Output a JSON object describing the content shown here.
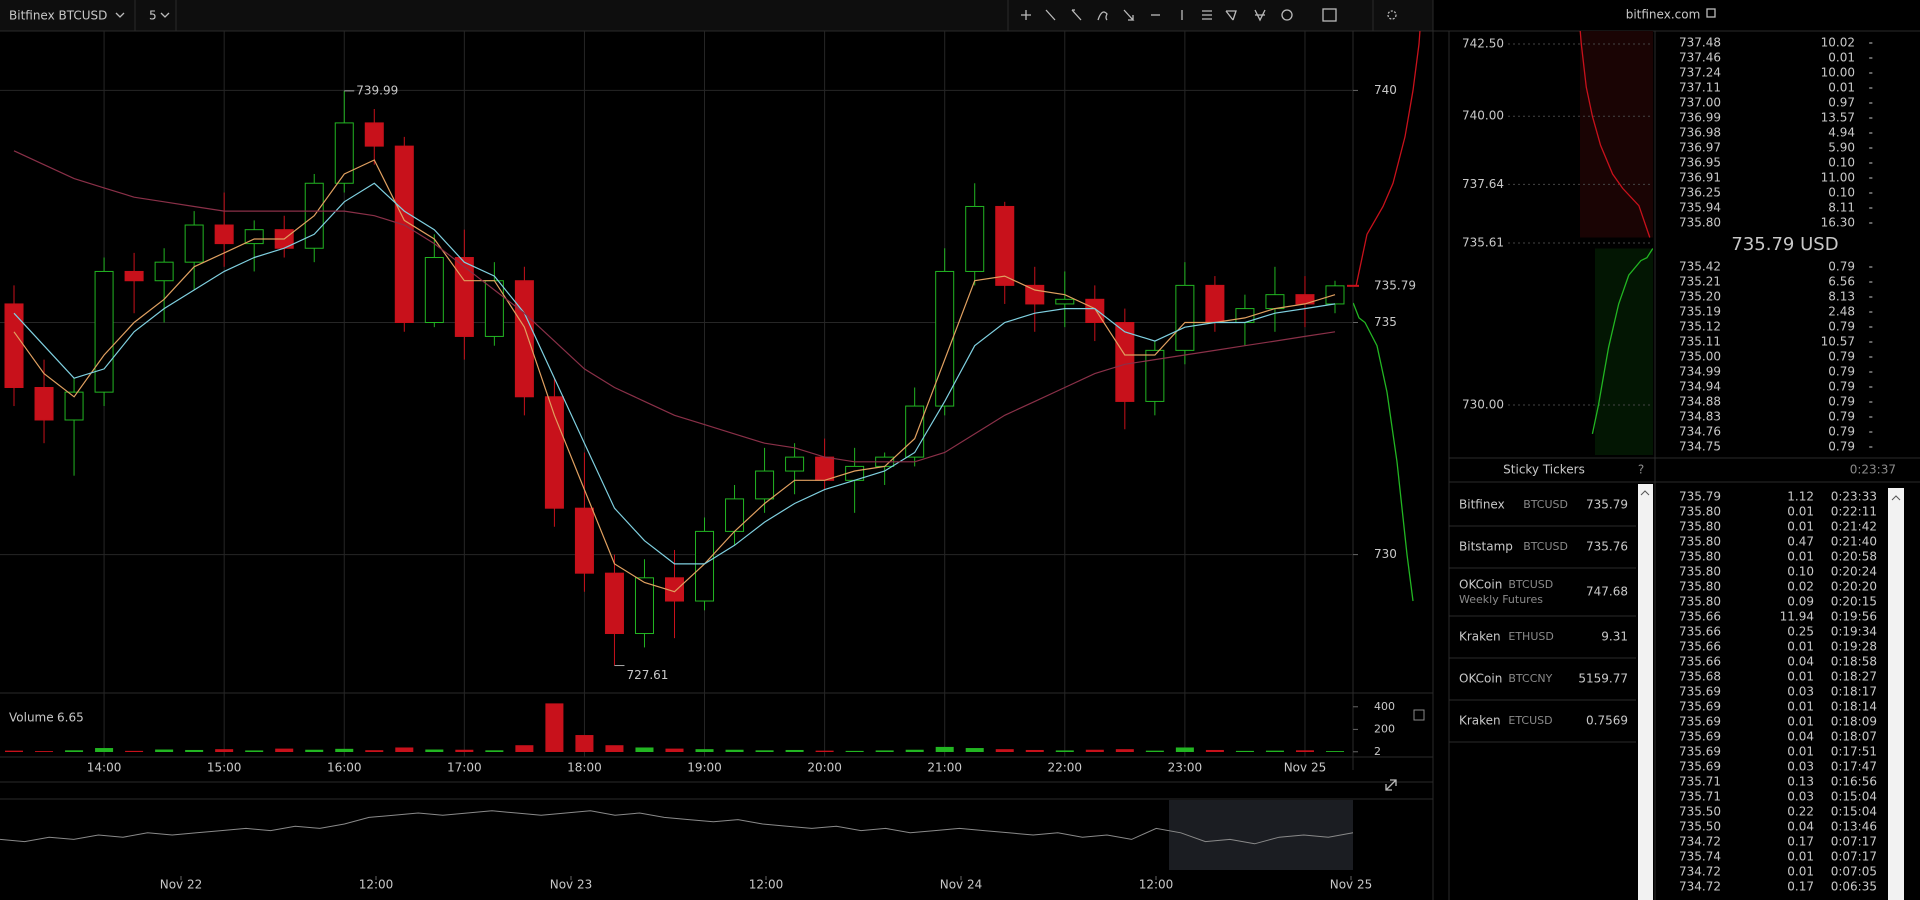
{
  "header": {
    "symbol": "Bitfinex BTCUSD",
    "interval": "5",
    "site": "bitfinex.com"
  },
  "price_chart": {
    "type": "candlestick",
    "up_color": "#22b522",
    "down_color": "#c8111b",
    "xlim": [
      "13:08",
      "00:24"
    ],
    "xticks": [
      "14:00",
      "15:00",
      "16:00",
      "17:00",
      "18:00",
      "19:00",
      "20:00",
      "21:00",
      "22:00",
      "23:00",
      {
        "value": "00:00",
        "label": "Nov 25"
      }
    ],
    "ylim": [
      727.04,
      741.28
    ],
    "yticks": [
      730,
      735,
      740
    ],
    "grid": true,
    "high": 739.99,
    "low": 727.61,
    "last_price": 735.79,
    "times": [
      "13:15",
      "13:30",
      "13:45",
      "14:00",
      "14:15",
      "14:30",
      "14:45",
      "15:00",
      "15:15",
      "15:30",
      "15:45",
      "16:00",
      "16:15",
      "16:30",
      "16:45",
      "17:00",
      "17:15",
      "17:30",
      "17:45",
      "18:00",
      "18:15",
      "18:30",
      "18:45",
      "19:00",
      "19:15",
      "19:30",
      "19:45",
      "20:00",
      "20:15",
      "20:30",
      "20:45",
      "21:00",
      "21:15",
      "21:30",
      "21:45",
      "22:00",
      "22:15",
      "22:30",
      "22:45",
      "23:00",
      "23:15",
      "23:30",
      "23:45",
      "00:00",
      "00:15"
    ],
    "ohlc": [
      [
        735.4,
        735.8,
        733.2,
        733.6
      ],
      [
        733.6,
        734.2,
        732.4,
        732.9
      ],
      [
        732.9,
        733.8,
        731.7,
        733.5
      ],
      [
        733.5,
        736.4,
        733.2,
        736.1
      ],
      [
        736.1,
        736.5,
        735.2,
        735.9
      ],
      [
        735.9,
        736.6,
        735.0,
        736.3
      ],
      [
        736.3,
        737.4,
        735.7,
        737.1
      ],
      [
        737.1,
        737.8,
        736.2,
        736.7
      ],
      [
        736.7,
        737.2,
        736.1,
        737.0
      ],
      [
        737.0,
        737.3,
        736.4,
        736.6
      ],
      [
        736.6,
        738.2,
        736.3,
        738.0
      ],
      [
        738.0,
        739.99,
        737.8,
        739.3
      ],
      [
        739.3,
        739.6,
        738.4,
        738.8
      ],
      [
        738.8,
        739.0,
        734.8,
        735.0
      ],
      [
        735.0,
        736.9,
        734.9,
        736.4
      ],
      [
        736.4,
        737.0,
        734.2,
        734.7
      ],
      [
        734.7,
        736.3,
        734.5,
        735.9
      ],
      [
        735.9,
        736.2,
        733.0,
        733.4
      ],
      [
        733.4,
        733.8,
        730.6,
        731.0
      ],
      [
        731.0,
        732.2,
        729.2,
        729.6
      ],
      [
        729.6,
        730.0,
        727.61,
        728.3
      ],
      [
        728.3,
        729.9,
        728.0,
        729.5
      ],
      [
        729.5,
        730.1,
        728.2,
        729.0
      ],
      [
        729.0,
        730.8,
        728.8,
        730.5
      ],
      [
        730.5,
        731.5,
        730.2,
        731.2
      ],
      [
        731.2,
        732.3,
        730.9,
        731.8
      ],
      [
        731.8,
        732.4,
        731.3,
        732.1
      ],
      [
        732.1,
        732.5,
        731.4,
        731.6
      ],
      [
        731.6,
        732.3,
        730.9,
        731.9
      ],
      [
        731.9,
        732.2,
        731.5,
        732.1
      ],
      [
        732.1,
        733.6,
        731.9,
        733.2
      ],
      [
        733.2,
        736.6,
        733.0,
        736.1
      ],
      [
        736.1,
        738.0,
        735.8,
        737.5
      ],
      [
        737.5,
        737.6,
        735.4,
        735.8
      ],
      [
        735.8,
        736.2,
        734.8,
        735.4
      ],
      [
        735.4,
        736.1,
        734.9,
        735.5
      ],
      [
        735.5,
        735.8,
        734.6,
        735.0
      ],
      [
        735.0,
        735.3,
        732.7,
        733.3
      ],
      [
        733.3,
        734.6,
        733.0,
        734.4
      ],
      [
        734.4,
        736.3,
        734.1,
        735.8
      ],
      [
        735.8,
        736.0,
        734.8,
        735.0
      ],
      [
        735.0,
        735.6,
        734.5,
        735.3
      ],
      [
        735.3,
        736.2,
        734.8,
        735.6
      ],
      [
        735.6,
        736.0,
        734.9,
        735.4
      ],
      [
        735.4,
        735.9,
        735.2,
        735.79
      ]
    ],
    "series": [
      {
        "color": "#e0a060",
        "values": [
          734.8,
          733.9,
          733.4,
          734.3,
          735.0,
          735.5,
          736.2,
          736.5,
          736.8,
          736.8,
          737.3,
          738.2,
          738.5,
          737.2,
          736.8,
          735.9,
          735.9,
          734.9,
          733.0,
          731.4,
          729.8,
          729.4,
          729.2,
          729.8,
          730.5,
          731.1,
          731.6,
          731.6,
          731.8,
          731.9,
          732.5,
          734.2,
          735.9,
          736.0,
          735.7,
          735.6,
          735.3,
          734.3,
          734.3,
          735.0,
          735.0,
          735.1,
          735.3,
          735.4,
          735.6
        ]
      },
      {
        "color": "#7fd0e0",
        "values": [
          735.2,
          734.5,
          733.8,
          734.0,
          734.8,
          735.3,
          735.7,
          736.1,
          736.4,
          736.6,
          736.9,
          737.6,
          738.0,
          737.4,
          737.0,
          736.3,
          736.0,
          735.2,
          733.8,
          732.4,
          731.0,
          730.3,
          729.8,
          729.8,
          730.2,
          730.7,
          731.1,
          731.4,
          731.6,
          731.8,
          732.2,
          733.3,
          734.5,
          735.0,
          735.2,
          735.3,
          735.3,
          734.8,
          734.6,
          734.9,
          735.0,
          735.0,
          735.2,
          735.3,
          735.4
        ]
      },
      {
        "color": "#8a3048",
        "values": [
          738.7,
          738.4,
          738.1,
          737.9,
          737.7,
          737.6,
          737.5,
          737.4,
          737.4,
          737.4,
          737.4,
          737.4,
          737.3,
          737.1,
          736.7,
          736.2,
          735.7,
          735.2,
          734.6,
          734.0,
          733.6,
          733.3,
          733.0,
          732.8,
          732.6,
          732.4,
          732.3,
          732.1,
          732.0,
          732.0,
          732.0,
          732.2,
          732.6,
          733.0,
          733.3,
          733.6,
          733.9,
          734.1,
          734.2,
          734.3,
          734.4,
          734.5,
          734.6,
          734.7,
          734.8
        ]
      }
    ]
  },
  "volume": {
    "type": "bar",
    "label": "Volume",
    "value": 6.65,
    "ylim": [
      0,
      460
    ],
    "yticks": [
      2,
      200,
      400
    ],
    "values": [
      12,
      8,
      15,
      35,
      10,
      22,
      18,
      25,
      14,
      30,
      20,
      28,
      16,
      40,
      22,
      20,
      15,
      60,
      430,
      150,
      60,
      40,
      30,
      25,
      20,
      15,
      18,
      12,
      10,
      14,
      20,
      45,
      35,
      25,
      18,
      14,
      20,
      25,
      12,
      40,
      18,
      10,
      12,
      15,
      8
    ]
  },
  "navigator": {
    "type": "line",
    "color": "#8a8a8a",
    "ylim": [
      715,
      745
    ],
    "xticks": [
      "Nov 22",
      "12:00",
      "Nov 23",
      "12:00",
      "Nov 24",
      "12:00",
      "Nov 25"
    ],
    "values": [
      728,
      727,
      729,
      728,
      730,
      729,
      731,
      730,
      731,
      732,
      733,
      732,
      734,
      733,
      735,
      738,
      739,
      740,
      739,
      740,
      741,
      740,
      739,
      740,
      741,
      739,
      740,
      738,
      737,
      736,
      737,
      735,
      734,
      733,
      734,
      732,
      733,
      731,
      732,
      733,
      732,
      731,
      730,
      731,
      729,
      730,
      728,
      733,
      731,
      727,
      728,
      726,
      729,
      730,
      729,
      731
    ]
  },
  "depth": {
    "type": "depth",
    "xlim": [
      0,
      1000
    ],
    "ylim": [
      728.27,
      742.95
    ],
    "yticks": [
      {
        "value": 742.5,
        "label": "742.50"
      },
      {
        "value": 740,
        "label": "740.00"
      },
      737.64,
      735.61,
      {
        "value": 730,
        "label": "730.00"
      }
    ],
    "asks": {
      "color": "#c8111b",
      "prices": [
        735.8,
        736.9,
        737.5,
        738.0,
        739.0,
        740.0,
        741.0,
        742.5,
        743.0
      ],
      "amounts": [
        16,
        70,
        150,
        200,
        260,
        300,
        330,
        355,
        361
      ]
    },
    "bids": {
      "color": "#22b522",
      "prices": [
        735.42,
        735.1,
        735.0,
        734.5,
        733.5,
        732.0,
        731.0,
        730.0,
        729.0
      ],
      "amounts": [
        1,
        30,
        60,
        120,
        170,
        220,
        245,
        270,
        300
      ]
    }
  },
  "order_book": {
    "mid": "735.79 USD",
    "asks": [
      [
        "737.48",
        "10.02",
        "-"
      ],
      [
        "737.46",
        "0.01",
        "-"
      ],
      [
        "737.24",
        "10.00",
        "-"
      ],
      [
        "737.11",
        "0.01",
        "-"
      ],
      [
        "737.00",
        "0.97",
        "-"
      ],
      [
        "736.99",
        "13.57",
        "-"
      ],
      [
        "736.98",
        "4.94",
        "-"
      ],
      [
        "736.97",
        "5.90",
        "-"
      ],
      [
        "736.95",
        "0.10",
        "-"
      ],
      [
        "736.91",
        "11.00",
        "-"
      ],
      [
        "736.25",
        "0.10",
        "-"
      ],
      [
        "735.94",
        "8.11",
        "-"
      ],
      [
        "735.80",
        "16.30",
        "-"
      ]
    ],
    "bids": [
      [
        "735.42",
        "0.79",
        "-"
      ],
      [
        "735.21",
        "6.56",
        "-"
      ],
      [
        "735.20",
        "8.13",
        "-"
      ],
      [
        "735.19",
        "2.48",
        "-"
      ],
      [
        "735.12",
        "0.79",
        "-"
      ],
      [
        "735.11",
        "10.57",
        "-"
      ],
      [
        "735.00",
        "0.79",
        "-"
      ],
      [
        "734.99",
        "0.79",
        "-"
      ],
      [
        "734.94",
        "0.79",
        "-"
      ],
      [
        "734.88",
        "0.79",
        "-"
      ],
      [
        "734.83",
        "0.79",
        "-"
      ],
      [
        "734.76",
        "0.79",
        "-"
      ],
      [
        "734.75",
        "0.79",
        "-"
      ]
    ]
  },
  "sticky_tickers": {
    "title": "Sticky Tickers",
    "help": "?",
    "rows": [
      {
        "exchange": "Bitfinex",
        "pair": "BTCUSD",
        "price": "735.79"
      },
      {
        "exchange": "Bitstamp",
        "pair": "BTCUSD",
        "price": "735.76"
      },
      {
        "exchange": "OKCoin",
        "pair": "BTCUSD",
        "note": "Weekly Futures",
        "price": "747.68"
      },
      {
        "exchange": "Kraken",
        "pair": "ETHUSD",
        "price": "9.31"
      },
      {
        "exchange": "OKCoin",
        "pair": "BTCCNY",
        "price": "5159.77"
      },
      {
        "exchange": "Kraken",
        "pair": "ETCUSD",
        "price": "0.7569"
      }
    ]
  },
  "trades": {
    "clock": "0:23:37",
    "rows": [
      {
        "side": "sell",
        "cells": [
          "735.79",
          "1.12",
          "0:23:33"
        ]
      },
      {
        "side": "buy",
        "cells": [
          "735.80",
          "0.01",
          "0:22:11"
        ]
      },
      {
        "side": "buy",
        "cells": [
          "735.80",
          "0.01",
          "0:21:42"
        ]
      },
      {
        "side": "buy",
        "cells": [
          "735.80",
          "0.47",
          "0:21:40"
        ]
      },
      {
        "side": "buy",
        "cells": [
          "735.80",
          "0.01",
          "0:20:58"
        ]
      },
      {
        "side": "buy",
        "cells": [
          "735.80",
          "0.10",
          "0:20:24"
        ]
      },
      {
        "side": "buy",
        "cells": [
          "735.80",
          "0.02",
          "0:20:20"
        ]
      },
      {
        "side": "buy",
        "cells": [
          "735.80",
          "0.09",
          "0:20:15"
        ]
      },
      {
        "side": "sell",
        "cells": [
          "735.66",
          "11.94",
          "0:19:56"
        ]
      },
      {
        "side": "sell",
        "cells": [
          "735.66",
          "0.25",
          "0:19:34"
        ]
      },
      {
        "side": "sell",
        "cells": [
          "735.66",
          "0.01",
          "0:19:28"
        ]
      },
      {
        "side": "sell",
        "cells": [
          "735.66",
          "0.04",
          "0:18:58"
        ]
      },
      {
        "side": "sell",
        "cells": [
          "735.68",
          "0.01",
          "0:18:27"
        ]
      },
      {
        "side": "sell",
        "cells": [
          "735.69",
          "0.03",
          "0:18:17"
        ]
      },
      {
        "side": "sell",
        "cells": [
          "735.69",
          "0.01",
          "0:18:14"
        ]
      },
      {
        "side": "sell",
        "cells": [
          "735.69",
          "0.01",
          "0:18:09"
        ]
      },
      {
        "side": "sell",
        "cells": [
          "735.69",
          "0.04",
          "0:18:07"
        ]
      },
      {
        "side": "sell",
        "cells": [
          "735.69",
          "0.01",
          "0:17:51"
        ]
      },
      {
        "side": "sell",
        "cells": [
          "735.69",
          "0.03",
          "0:17:47"
        ]
      },
      {
        "side": "buy",
        "cells": [
          "735.71",
          "0.13",
          "0:16:56"
        ]
      },
      {
        "side": "buy",
        "cells": [
          "735.71",
          "0.03",
          "0:15:04"
        ]
      },
      {
        "side": "buy",
        "cells": [
          "735.50",
          "0.22",
          "0:15:04"
        ]
      },
      {
        "side": "buy",
        "cells": [
          "735.50",
          "0.04",
          "0:13:46"
        ]
      },
      {
        "side": "sell",
        "cells": [
          "734.72",
          "0.17",
          "0:07:17"
        ]
      },
      {
        "side": "buy",
        "cells": [
          "735.74",
          "0.01",
          "0:07:17"
        ]
      },
      {
        "side": "sell",
        "cells": [
          "734.72",
          "0.01",
          "0:07:05"
        ]
      },
      {
        "side": "sell",
        "cells": [
          "734.72",
          "0.17",
          "0:06:35"
        ]
      }
    ]
  }
}
